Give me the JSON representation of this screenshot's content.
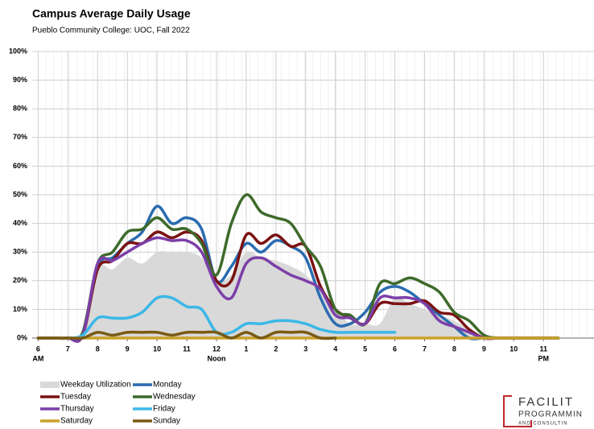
{
  "chart_data": {
    "type": "line",
    "title": "Campus Average Daily Usage",
    "subtitle": "Pueblo Community College: UOC, Fall 2022",
    "x": [
      6,
      6.5,
      7,
      7.5,
      8,
      8.5,
      9,
      9.5,
      10,
      10.5,
      11,
      11.5,
      12,
      12.5,
      13,
      13.5,
      14,
      14.5,
      15,
      15.5,
      16,
      16.5,
      17,
      17.5,
      18,
      18.5,
      19,
      19.5,
      20,
      20.5,
      21,
      21.5,
      22,
      22.5,
      23,
      23.5
    ],
    "xlim": [
      5.8,
      24.7
    ],
    "xticks": [
      6,
      7,
      8,
      9,
      10,
      11,
      12,
      {
        "value": 13,
        "label": "1"
      },
      {
        "value": 14,
        "label": "2"
      },
      {
        "value": 15,
        "label": "3"
      },
      {
        "value": 16,
        "label": "4"
      },
      {
        "value": 17,
        "label": "5"
      },
      {
        "value": 18,
        "label": "6"
      },
      {
        "value": 19,
        "label": "7"
      },
      {
        "value": 20,
        "label": "8"
      },
      {
        "value": 21,
        "label": "9"
      },
      {
        "value": 22,
        "label": "10"
      },
      {
        "value": 23,
        "label": "11"
      }
    ],
    "x_sublabels": [
      {
        "text": "AM",
        "x": 6
      },
      {
        "text": "Noon",
        "x": 12
      },
      {
        "text": "PM",
        "x": 23
      }
    ],
    "ylim": [
      0,
      100
    ],
    "yticks": [
      {
        "value": 0,
        "label": "0%"
      },
      {
        "value": 10,
        "label": "10%"
      },
      {
        "value": 20,
        "label": "20%"
      },
      {
        "value": 30,
        "label": "30%"
      },
      {
        "value": 40,
        "label": "40%"
      },
      {
        "value": 50,
        "label": "50%"
      },
      {
        "value": 60,
        "label": "60%"
      },
      {
        "value": 70,
        "label": "70%"
      },
      {
        "value": 80,
        "label": "80%"
      },
      {
        "value": 90,
        "label": "90%"
      },
      {
        "value": 100,
        "label": "100%"
      }
    ],
    "grid": true,
    "legend": "bottom-left",
    "series": [
      {
        "name": "Weekday Utilization",
        "color": "#d9d9d9",
        "style": "area",
        "values": [
          0,
          0,
          0,
          0,
          24,
          24,
          28,
          26,
          30,
          30,
          30,
          28,
          20,
          22,
          30,
          28,
          27,
          25,
          22,
          16,
          10,
          5,
          5,
          5,
          14,
          12,
          10,
          8,
          6,
          3,
          0,
          0,
          0,
          0,
          0,
          0
        ]
      },
      {
        "name": "Monday",
        "color": "#2b6cb0",
        "values": [
          0,
          0,
          0,
          1,
          25,
          28,
          33,
          37,
          46,
          40,
          42,
          38,
          20,
          25,
          33,
          30,
          34,
          32,
          28,
          14,
          5,
          5,
          9,
          16,
          18,
          16,
          12,
          8,
          4,
          0,
          0,
          0,
          0,
          0,
          0,
          0
        ]
      },
      {
        "name": "Tuesday",
        "color": "#7b1212",
        "values": [
          0,
          0,
          0,
          1,
          24,
          27,
          33,
          33,
          37,
          35,
          37,
          34,
          20,
          20,
          36,
          33,
          36,
          32,
          32,
          18,
          10,
          7,
          5,
          12,
          12,
          12,
          13,
          9,
          8,
          3,
          0,
          0,
          0,
          0,
          0,
          0
        ]
      },
      {
        "name": "Wednesday",
        "color": "#3d6a2a",
        "values": [
          0,
          0,
          0,
          2,
          26,
          30,
          37,
          38,
          42,
          38,
          38,
          33,
          22,
          40,
          50,
          44,
          42,
          40,
          32,
          25,
          10,
          8,
          5,
          19,
          19,
          21,
          19,
          16,
          9,
          6,
          1,
          0,
          0,
          0,
          0,
          0
        ]
      },
      {
        "name": "Thursday",
        "color": "#7c3fa8",
        "values": [
          0,
          0,
          0,
          1,
          26,
          27,
          30,
          33,
          35,
          34,
          34,
          30,
          18,
          14,
          26,
          28,
          25,
          22,
          20,
          17,
          8,
          7,
          5,
          14,
          14,
          14,
          12,
          6,
          4,
          2,
          0,
          0,
          0,
          0,
          0,
          0
        ]
      },
      {
        "name": "Friday",
        "color": "#3bb8e8",
        "values": [
          0,
          0,
          0,
          1,
          7,
          7,
          7,
          9,
          14,
          14,
          11,
          10,
          2,
          2,
          5,
          5,
          6,
          6,
          5,
          3,
          2,
          2,
          2,
          2,
          2,
          null,
          null,
          null,
          null,
          null,
          null,
          null,
          null,
          null,
          null,
          null
        ]
      },
      {
        "name": "Saturday",
        "color": "#c9a227",
        "values": [
          0,
          0,
          0,
          0,
          0,
          0,
          0,
          0,
          0,
          0,
          0,
          0,
          0,
          0,
          0,
          0,
          0,
          0,
          0,
          0,
          0,
          0,
          0,
          0,
          0,
          0,
          0,
          0,
          0,
          0,
          0,
          0,
          0,
          0,
          0,
          0
        ]
      },
      {
        "name": "Sunday",
        "color": "#7a5a14",
        "values": [
          0,
          0,
          0,
          0,
          2,
          1,
          2,
          2,
          2,
          1,
          2,
          2,
          2,
          0,
          2,
          0,
          2,
          2,
          2,
          0,
          0,
          null,
          null,
          null,
          null,
          null,
          null,
          null,
          null,
          null,
          null,
          null,
          null,
          null,
          null,
          null
        ]
      }
    ],
    "logo": [
      "FACILIT",
      "PROGRAMMIN",
      "AND CONSULTIN"
    ]
  }
}
